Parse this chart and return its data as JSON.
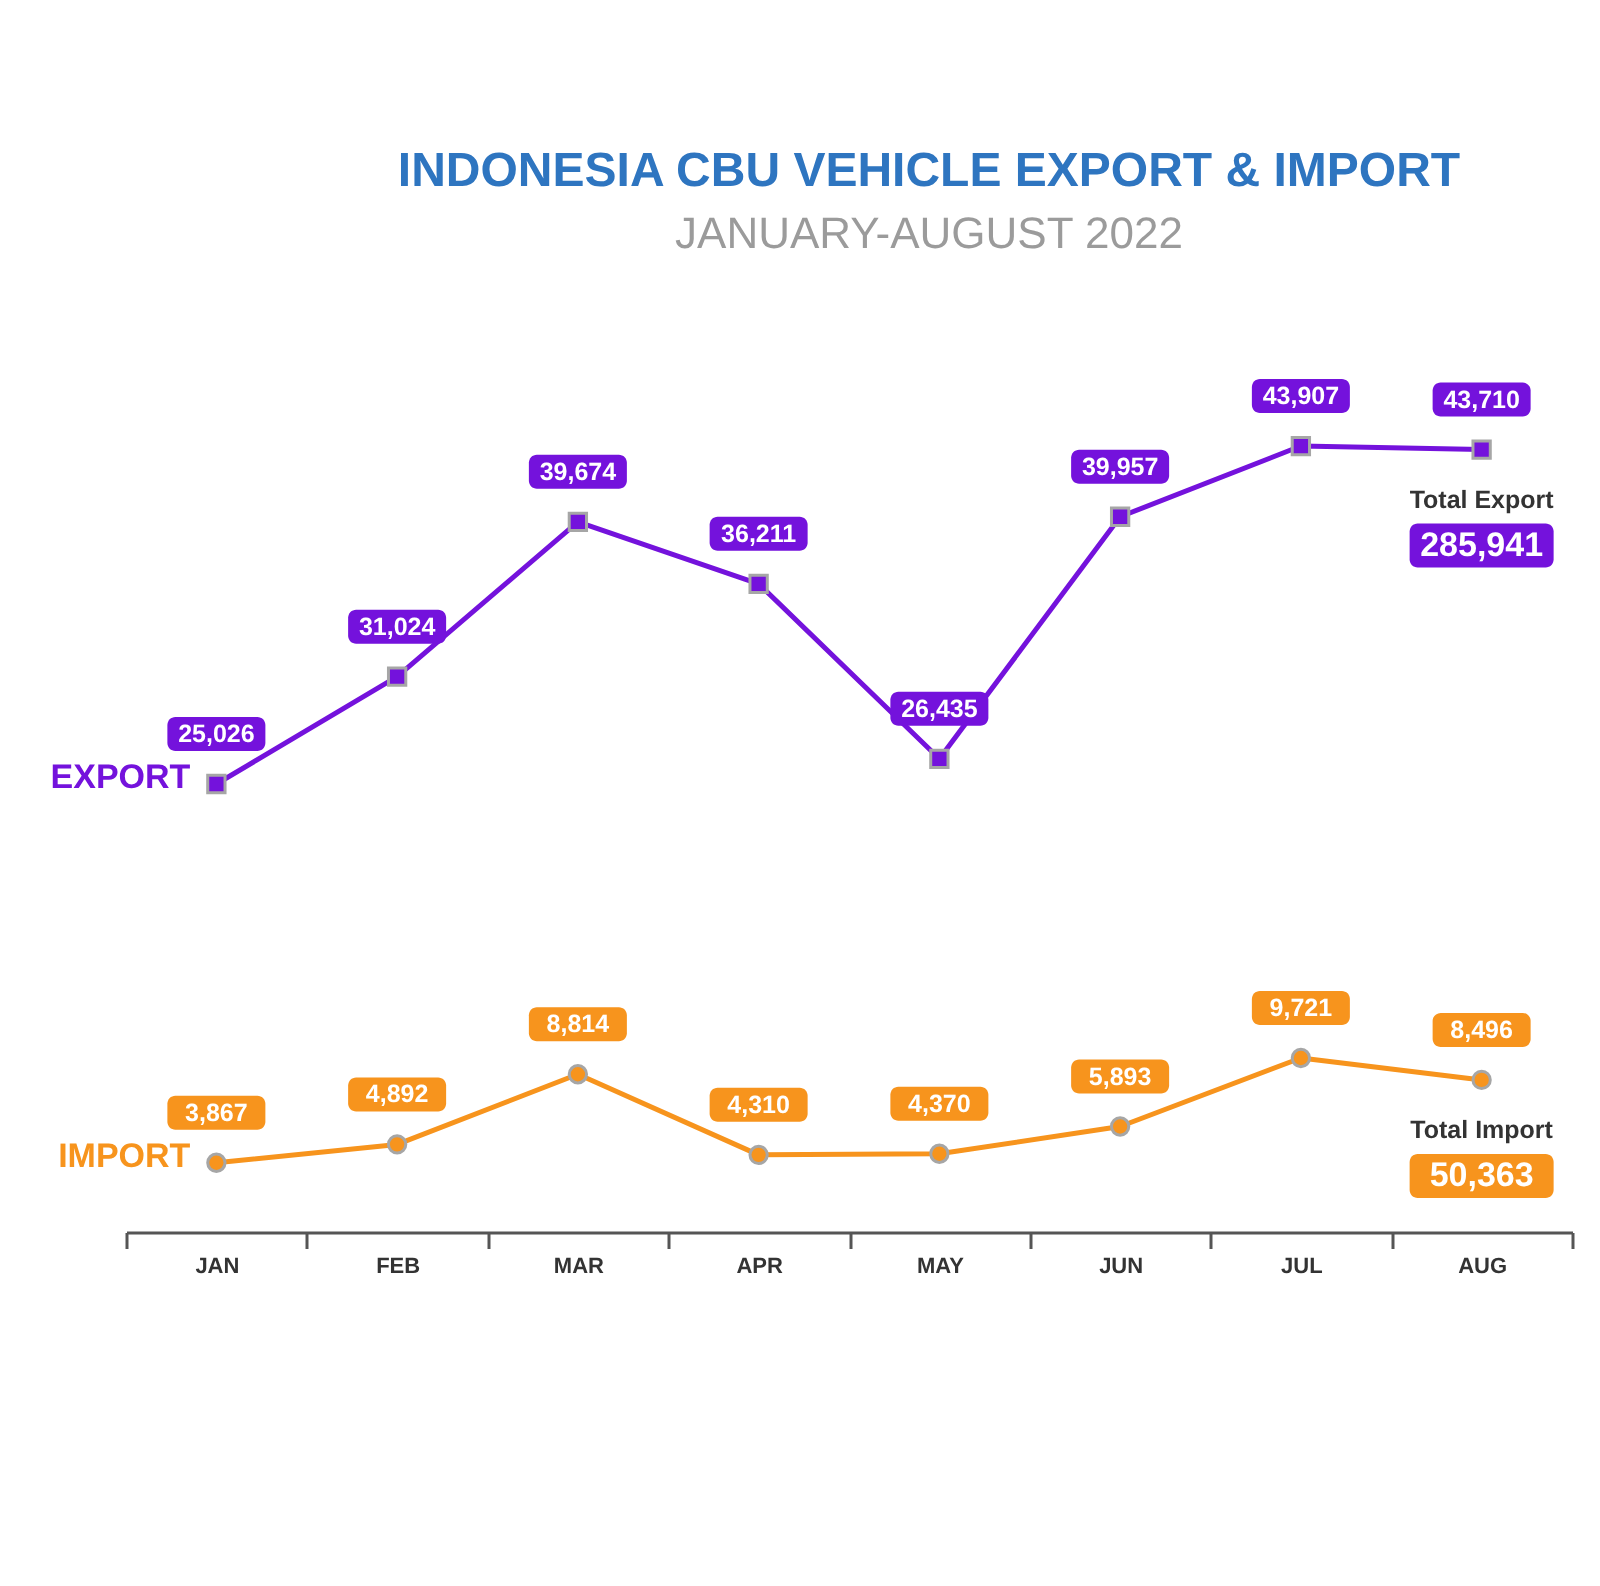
{
  "chart_data": {
    "type": "line",
    "title": "INDONESIA CBU VEHICLE EXPORT & IMPORT",
    "subtitle": "JANUARY-AUGUST 2022",
    "categories": [
      "JAN",
      "FEB",
      "MAR",
      "APR",
      "MAY",
      "JUN",
      "JUL",
      "AUG"
    ],
    "tick_labels": "x",
    "grid": false,
    "legend": "left",
    "series": [
      {
        "name": "EXPORT",
        "color": "#7412dc",
        "marker": "square",
        "line_style": "solid",
        "values": [
          25026,
          31024,
          39674,
          36211,
          26435,
          39957,
          43907,
          43710
        ],
        "value_labels": [
          "25,026",
          "31,024",
          "39,674",
          "36,211",
          "26,435",
          "39,957",
          "43,907",
          "43,710"
        ]
      },
      {
        "name": "IMPORT",
        "color": "#f7941d",
        "marker": "circle",
        "line_style": "solid",
        "values": [
          3867,
          4892,
          8814,
          4310,
          4370,
          5893,
          9721,
          8496
        ],
        "value_labels": [
          "3,867",
          "4,892",
          "8,814",
          "4,310",
          "4,370",
          "5,893",
          "9,721",
          "8,496"
        ]
      }
    ],
    "annotations": [
      "Total Export",
      "285,941",
      "Total Import",
      "50,363"
    ]
  }
}
